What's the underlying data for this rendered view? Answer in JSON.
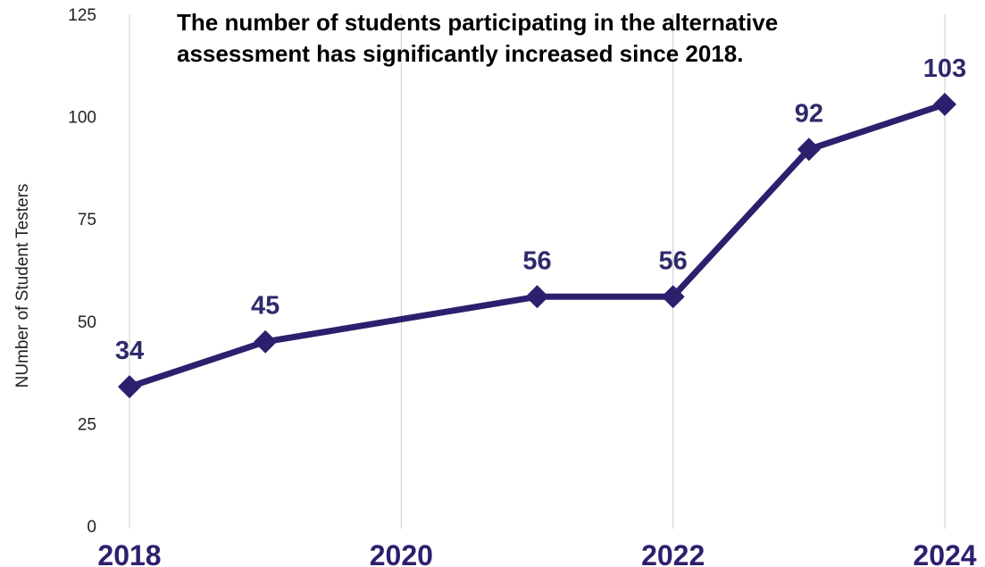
{
  "chart_data": {
    "type": "line",
    "title_lines": [
      "The number of students participating in the alternative",
      "assessment has significantly increased since 2018."
    ],
    "xlabel": "",
    "ylabel": "NUmber of Student Testers",
    "xlim": [
      2018,
      2024
    ],
    "ylim": [
      0,
      125
    ],
    "x_ticks": [
      2018,
      2020,
      2022,
      2024
    ],
    "x_tick_labels": [
      "2018",
      "2020",
      "2022",
      "2024"
    ],
    "y_ticks": [
      0,
      25,
      50,
      75,
      100,
      125
    ],
    "y_tick_labels": [
      "0",
      "25",
      "50",
      "75",
      "100",
      "125"
    ],
    "vertical_grid": true,
    "horizontal_grid": false,
    "legend": "none",
    "series": [
      {
        "x": [
          2018,
          2019,
          2021,
          2022,
          2023,
          2024
        ],
        "values": [
          34,
          45,
          56,
          56,
          92,
          103
        ],
        "data_labels": [
          "34",
          "45",
          "56",
          "56",
          "92",
          "103"
        ],
        "color": "#2e1f6e",
        "marker": "diamond"
      }
    ]
  },
  "colors": {
    "line": "#2e1f6e",
    "data_label": "#2e2a6b",
    "grid": "#cccccc",
    "tick_text": "#222222",
    "x_tick_text": "#2e1f6e"
  }
}
